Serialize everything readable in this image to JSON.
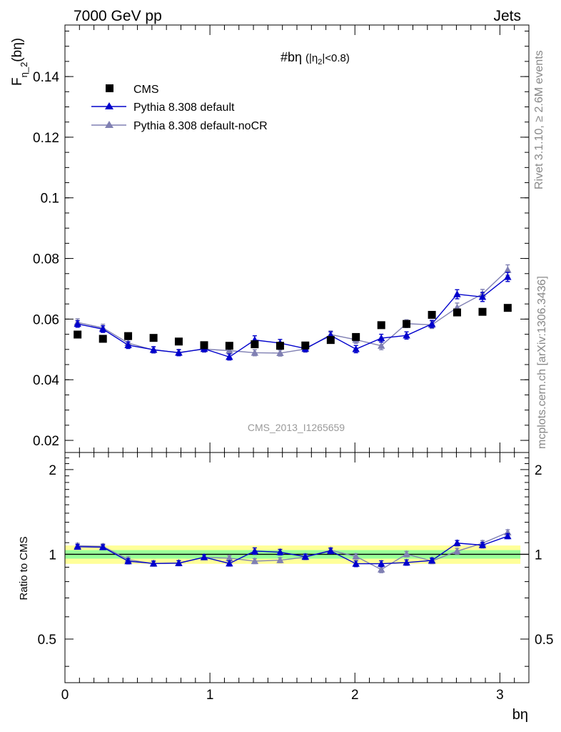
{
  "header": {
    "left": "7000 GeV pp",
    "right": "Jets"
  },
  "side_labels": {
    "rivet": "Rivet 3.1.10, ≥ 2.6M events",
    "mcplots": "mcplots.cern.ch [arXiv:1306.3436]"
  },
  "watermark": "CMS_2013_I1265659",
  "chart_data": [
    {
      "type": "scatter",
      "title_main": "#bη",
      "title_sub_open": "(|η",
      "title_sub_index": "2",
      "title_sub_close": "|<0.8)",
      "ylabel_main": "F",
      "ylabel_sub": "η_2",
      "ylabel_tail": "(bη)",
      "xlim": [
        0,
        3.2
      ],
      "ylim": [
        0.016,
        0.157
      ],
      "yticks": [
        0.02,
        0.04,
        0.06,
        0.08,
        0.1,
        0.12,
        0.14
      ],
      "ytick_labels": [
        "0.02",
        "0.04",
        "0.06",
        "0.08",
        "0.1",
        "0.12",
        "0.14"
      ],
      "legend_position": "top-left",
      "x": [
        0.087,
        0.262,
        0.436,
        0.611,
        0.785,
        0.96,
        1.134,
        1.309,
        1.484,
        1.658,
        1.833,
        2.007,
        2.182,
        2.356,
        2.531,
        2.705,
        2.88,
        3.054
      ],
      "series": [
        {
          "name": "CMS",
          "marker": "square",
          "color": "#000000",
          "values": [
            0.0549,
            0.0535,
            0.0544,
            0.0538,
            0.0526,
            0.0514,
            0.0512,
            0.0517,
            0.0512,
            0.0513,
            0.0531,
            0.0541,
            0.058,
            0.0584,
            0.0614,
            0.0622,
            0.0624,
            0.0637
          ]
        },
        {
          "name": "Pythia 8.308 default",
          "marker": "triangle",
          "color": "#0000cc",
          "values": [
            0.0584,
            0.0567,
            0.0514,
            0.0499,
            0.0489,
            0.0502,
            0.0475,
            0.0531,
            0.0521,
            0.0503,
            0.0546,
            0.0501,
            0.0537,
            0.0546,
            0.0584,
            0.0682,
            0.0673,
            0.0739
          ],
          "errors": [
            0.0011,
            0.0011,
            0.0011,
            0.001,
            0.001,
            0.001,
            0.001,
            0.0014,
            0.0012,
            0.0011,
            0.0012,
            0.0012,
            0.0013,
            0.0012,
            0.0012,
            0.0015,
            0.0015,
            0.0015
          ]
        },
        {
          "name": "Pythia 8.308 default-noCR",
          "marker": "triangle",
          "color": "#8080b3",
          "values": [
            0.0589,
            0.0571,
            0.0521,
            0.0498,
            0.049,
            0.0501,
            0.0496,
            0.0489,
            0.0488,
            0.0501,
            0.0549,
            0.0532,
            0.0512,
            0.0585,
            0.0581,
            0.0638,
            0.0683,
            0.0762
          ],
          "errors": [
            0.0012,
            0.0012,
            0.0011,
            0.001,
            0.001,
            0.001,
            0.001,
            0.001,
            0.001,
            0.001,
            0.0012,
            0.0012,
            0.0013,
            0.0013,
            0.0012,
            0.0015,
            0.0015,
            0.0017
          ]
        }
      ]
    },
    {
      "type": "scatter",
      "ylabel": "Ratio to CMS",
      "xlabel": "bη",
      "xlim": [
        0,
        3.2
      ],
      "ylim": [
        0.35,
        2.3
      ],
      "log_y": true,
      "yticks": [
        0.5,
        1,
        2
      ],
      "ytick_labels": [
        "0.5",
        "1",
        "2"
      ],
      "xticks": [
        0,
        1,
        2,
        3
      ],
      "xtick_labels": [
        "0",
        "1",
        "2",
        "3"
      ],
      "band_green_halfwidth": 0.035,
      "band_yellow_halfwidth": 0.075,
      "x": [
        0.087,
        0.262,
        0.436,
        0.611,
        0.785,
        0.96,
        1.134,
        1.309,
        1.484,
        1.658,
        1.833,
        2.007,
        2.182,
        2.356,
        2.531,
        2.705,
        2.88,
        3.054
      ],
      "series": [
        {
          "name": "Pythia 8.308 default",
          "color": "#0000cc",
          "values": [
            1.064,
            1.06,
            0.945,
            0.928,
            0.93,
            0.977,
            0.928,
            1.027,
            1.018,
            0.981,
            1.028,
            0.926,
            0.926,
            0.935,
            0.951,
            1.096,
            1.078,
            1.16
          ]
        },
        {
          "name": "Pythia 8.308 default-noCR",
          "color": "#8080b3",
          "values": [
            1.073,
            1.067,
            0.958,
            0.926,
            0.932,
            0.975,
            0.969,
            0.946,
            0.953,
            0.977,
            1.034,
            0.983,
            0.883,
            1.002,
            0.946,
            1.026,
            1.095,
            1.196
          ]
        }
      ]
    }
  ]
}
